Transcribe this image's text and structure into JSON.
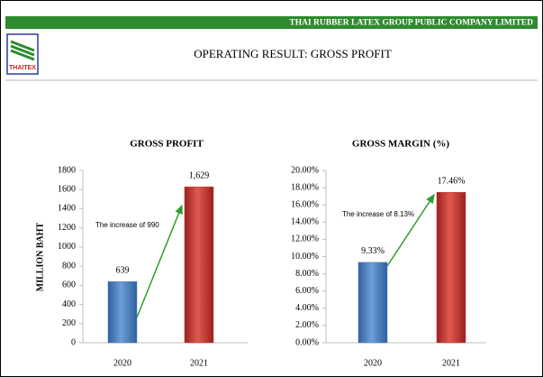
{
  "header": {
    "company": "THAI RUBBER LATEX GROUP PUBLIC COMPANY LIMITED",
    "title": "OPERATING RESULT: GROSS PROFIT",
    "logo": "THAITEX"
  },
  "chart_data": [
    {
      "type": "bar",
      "title": "GROSS PROFIT",
      "y_label": "MILLION BAHT",
      "categories": [
        "2020",
        "2021"
      ],
      "values": [
        639,
        1629
      ],
      "value_labels": [
        "639",
        "1,629"
      ],
      "colors": [
        "#4a7ebb",
        "#c0392b"
      ],
      "annotation": "The increase of 990",
      "ylim": [
        0,
        1800
      ],
      "yticks": [
        0,
        200,
        400,
        600,
        800,
        1000,
        1200,
        1400,
        1600,
        1800
      ],
      "grid": false
    },
    {
      "type": "bar",
      "title": "GROSS MARGIN (%)",
      "categories": [
        "2020",
        "2021"
      ],
      "values": [
        9.33,
        17.46
      ],
      "value_labels": [
        "9.33%",
        "17.46%"
      ],
      "colors": [
        "#4a7ebb",
        "#c0392b"
      ],
      "annotation": "The increase of 8.13%",
      "ylim": [
        0,
        20
      ],
      "yticks": [
        {
          "value": 0,
          "label": "0.00%"
        },
        {
          "value": 2,
          "label": "2.00%"
        },
        {
          "value": 4,
          "label": "4.00%"
        },
        {
          "value": 6,
          "label": "6.00%"
        },
        {
          "value": 8,
          "label": "8.00%"
        },
        {
          "value": 10,
          "label": "10.00%"
        },
        {
          "value": 12,
          "label": "12.00%"
        },
        {
          "value": 14,
          "label": "14.00%"
        },
        {
          "value": 16,
          "label": "16.00%"
        },
        {
          "value": 18,
          "label": "18.00%"
        },
        {
          "value": 20,
          "label": "20.00%"
        }
      ],
      "grid": false
    }
  ]
}
